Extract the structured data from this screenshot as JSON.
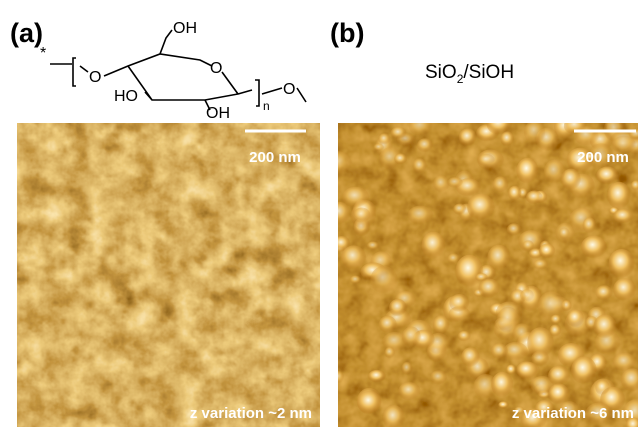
{
  "panels": [
    {
      "label": "(a)",
      "scale_bar": "200 nm",
      "z_variation": "z variation ~2 nm",
      "structure": {
        "end_mark": "*",
        "o_left": "O",
        "ch2oh": "OH",
        "ring_o": "O",
        "ho": "HO",
        "oh": "OH",
        "repeat": "n",
        "o_right": "O"
      }
    },
    {
      "label": "(b)",
      "scale_bar": "200 nm",
      "z_variation": "z variation ~6 nm",
      "substrate": {
        "main": "SiO",
        "sub": "2",
        "rest": "/SiOH"
      }
    }
  ]
}
